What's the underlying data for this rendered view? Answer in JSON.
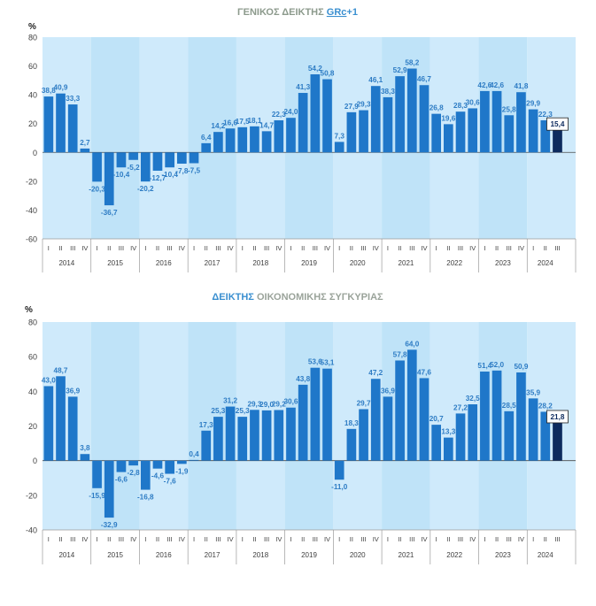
{
  "colors": {
    "plot_bg": "#cfeafb",
    "band_alt": "#bfe3f8",
    "bar": "#1f77c9",
    "bar_last": "#0d2b5e",
    "label": "#2e7cc4",
    "title1": "#8c9a8c",
    "title2_accent": "#3a8fd0",
    "title2_rest": "#9aa39a",
    "axis_text": "#404040",
    "underline_red": "#d04040"
  },
  "chart_data": [
    {
      "type": "bar",
      "title_parts": [
        "ΓΕΝΙΚΟΣ ΔΕΙΚΤΗΣ ",
        "GRc",
        "+1"
      ],
      "ylabel": "%",
      "ylim": [
        -60,
        80
      ],
      "yticks": [
        "80",
        "60",
        "40",
        "20",
        "0",
        "-20",
        "-40",
        "-60"
      ],
      "years": [
        "2014",
        "2015",
        "2016",
        "2017",
        "2018",
        "2019",
        "2020",
        "2021",
        "2022",
        "2023",
        "2024"
      ],
      "quarters": [
        "I",
        "II",
        "III",
        "IV"
      ],
      "values": [
        38.8,
        40.9,
        33.3,
        2.7,
        -20.3,
        -36.7,
        -10.4,
        -5.2,
        -20.2,
        -12.7,
        -10.4,
        -7.8,
        -7.5,
        6.4,
        14.2,
        16.6,
        17.5,
        18.1,
        14.7,
        22.3,
        24.0,
        41.3,
        54.2,
        50.8,
        7.3,
        27.9,
        29.3,
        46.1,
        38.3,
        52.9,
        58.2,
        46.7,
        26.8,
        19.6,
        28.3,
        30.6,
        42.6,
        42.6,
        25.8,
        41.8,
        29.9,
        22.3,
        15.4
      ],
      "labels": [
        "38,8",
        "40,9",
        "33,3",
        "2,7",
        "-20,3",
        "-36,7",
        "-10,4",
        "-5,2",
        "-20,2",
        "-12,7",
        "-10,4",
        "-7,8",
        "-7,5",
        "6,4",
        "14,2",
        "16,6",
        "17,5",
        "18,1",
        "14,7",
        "22,3",
        "24,0",
        "41,3",
        "54,2",
        "50,8",
        "7,3",
        "27,9",
        "29,3",
        "46,1",
        "38,3",
        "52,9",
        "58,2",
        "46,7",
        "26,8",
        "19,6",
        "28,3",
        "30,6",
        "42,6",
        "42,6",
        "25,8",
        "41,8",
        "29,9",
        "22,3",
        "15,4"
      ]
    },
    {
      "type": "bar",
      "title_parts": [
        "ΔΕΙΚΤΗΣ ",
        "ΟΙΚΟΝΟΜΙΚΗΣ ΣΥΓΚΥΡΙΑΣ"
      ],
      "ylabel": "%",
      "ylim": [
        -40,
        80
      ],
      "yticks": [
        "80",
        "60",
        "40",
        "20",
        "0",
        "-20",
        "-40"
      ],
      "years": [
        "2014",
        "2015",
        "2016",
        "2017",
        "2018",
        "2019",
        "2020",
        "2021",
        "2022",
        "2023",
        "2024"
      ],
      "quarters": [
        "I",
        "II",
        "III",
        "IV"
      ],
      "values": [
        43.0,
        48.7,
        36.9,
        3.8,
        -15.9,
        -32.9,
        -6.6,
        -2.8,
        -16.8,
        -4.6,
        -7.6,
        -1.9,
        0.4,
        17.3,
        25.3,
        31.2,
        25.3,
        29.3,
        29.0,
        29.2,
        30.6,
        43.8,
        53.6,
        53.1,
        -11.0,
        18.3,
        29.7,
        47.2,
        36.9,
        57.8,
        64.0,
        47.6,
        20.7,
        13.3,
        27.2,
        32.5,
        51.4,
        52.0,
        28.5,
        50.9,
        35.9,
        28.2,
        21.8
      ],
      "labels": [
        "43,0",
        "48,7",
        "36,9",
        "3,8",
        "-15,9",
        "-32,9",
        "-6,6",
        "-2,8",
        "-16,8",
        "-4,6",
        "-7,6",
        "-1,9",
        "0,4",
        "17,3",
        "25,3",
        "31,2",
        "25,3",
        "29,3",
        "29,0",
        "29,2",
        "30,6",
        "43,8",
        "53,6",
        "53,1",
        "-11,0",
        "18,3",
        "29,7",
        "47,2",
        "36,9",
        "57,8",
        "64,0",
        "47,6",
        "20,7",
        "13,3",
        "27,2",
        "32,5",
        "51,4",
        "52,0",
        "28,5",
        "50,9",
        "35,9",
        "28,2",
        "21,8"
      ]
    }
  ]
}
